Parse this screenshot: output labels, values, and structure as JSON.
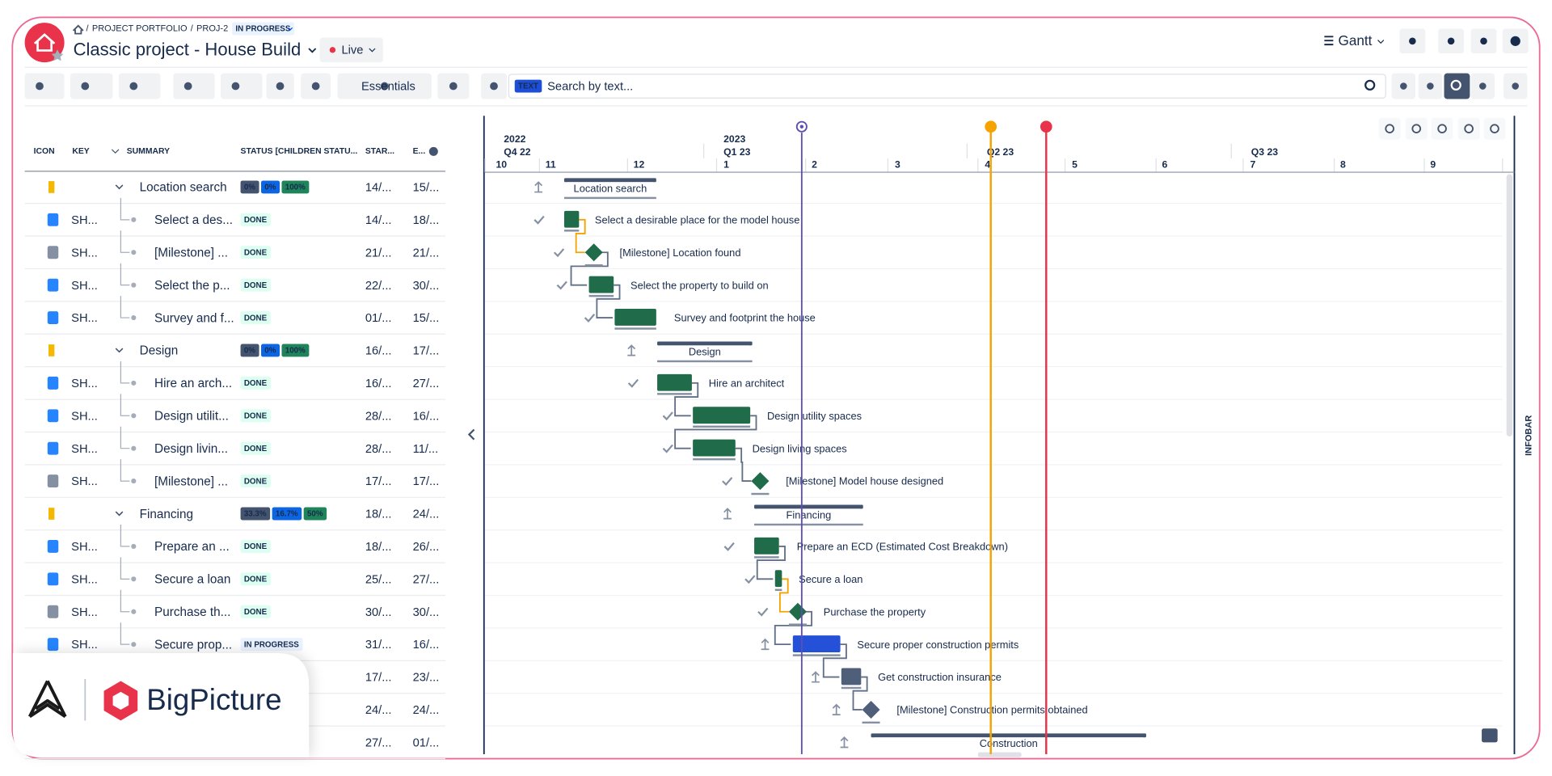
{
  "header": {
    "breadcrumb": [
      "PROJECT PORTFOLIO",
      "PROJ-2"
    ],
    "status": "IN PROGRESS",
    "title": "Classic project - House Build",
    "live": "Live",
    "view": "Gantt"
  },
  "toolbar": {
    "preset": "Essentials",
    "search_badge": "TEXT",
    "search_placeholder": "Search by text..."
  },
  "table": {
    "columns": [
      "ICON",
      "KEY",
      "SUMMARY",
      "STATUS [CHILDREN STATU...",
      "STAR...",
      "E..."
    ],
    "rows": [
      {
        "summary": "Location search",
        "progress": [
          "0%",
          "0%",
          "100%"
        ],
        "start": "14/...",
        "end": "15/..."
      },
      {
        "key": "SH...",
        "summary": "Select a des...",
        "status": "DONE",
        "start": "14/...",
        "end": "18/..."
      },
      {
        "key": "SH...",
        "summary": "[Milestone] ...",
        "status": "DONE",
        "start": "21/...",
        "end": "21/..."
      },
      {
        "key": "SH...",
        "summary": "Select the p...",
        "status": "DONE",
        "start": "22/...",
        "end": "30/..."
      },
      {
        "key": "SH...",
        "summary": "Survey and f...",
        "status": "DONE",
        "start": "01/...",
        "end": "15/..."
      },
      {
        "summary": "Design",
        "progress": [
          "0%",
          "0%",
          "100%"
        ],
        "start": "16/...",
        "end": "17/..."
      },
      {
        "key": "SH...",
        "summary": "Hire an arch...",
        "status": "DONE",
        "start": "16/...",
        "end": "27/..."
      },
      {
        "key": "SH...",
        "summary": "Design utilit...",
        "status": "DONE",
        "start": "28/...",
        "end": "16/..."
      },
      {
        "key": "SH...",
        "summary": "Design livin...",
        "status": "DONE",
        "start": "28/...",
        "end": "11/..."
      },
      {
        "key": "SH...",
        "summary": "[Milestone] ...",
        "status": "DONE",
        "start": "17/...",
        "end": "17/..."
      },
      {
        "summary": "Financing",
        "progress": [
          "33.3%",
          "16.7%",
          "50%"
        ],
        "start": "18/...",
        "end": "24/..."
      },
      {
        "key": "SH...",
        "summary": "Prepare an ...",
        "status": "DONE",
        "start": "18/...",
        "end": "26/..."
      },
      {
        "key": "SH...",
        "summary": "Secure a loan",
        "status": "DONE",
        "start": "25/...",
        "end": "27/..."
      },
      {
        "key": "SH...",
        "summary": "Purchase th...",
        "status": "DONE",
        "start": "30/...",
        "end": "30/..."
      },
      {
        "key": "SH...",
        "summary": "Secure prop...",
        "status": "IN PROGRESS",
        "start": "31/...",
        "end": "16/..."
      },
      {
        "start": "17/...",
        "end": "23/..."
      },
      {
        "start": "24/...",
        "end": "24/..."
      },
      {
        "start": "27/...",
        "end": "01/..."
      }
    ]
  },
  "timeline": {
    "years": [
      "2022",
      "2023"
    ],
    "quarters": [
      "Q4 22",
      "Q1 23",
      "Q2 23",
      "Q3 23"
    ],
    "months": [
      "10",
      "11",
      "12",
      "1",
      "2",
      "3",
      "4",
      "5",
      "6",
      "7",
      "8",
      "9"
    ]
  },
  "gantt": {
    "bars": [
      "Location search",
      "Select a desirable place for the model house",
      "[Milestone] Location found",
      "Select the property to build on",
      "Survey and footprint the house",
      "Design",
      "Hire an architect",
      "Design utility spaces",
      "Design living spaces",
      "[Milestone] Model house designed",
      "Financing",
      "Prepare an ECD (Estimated Cost Breakdown)",
      "Secure a loan",
      "Purchase the property",
      "Secure proper construction permits",
      "Get construction insurance",
      "[Milestone] Construction permits obtained",
      "Construction"
    ]
  },
  "infobar": "INFOBAR",
  "brand": "BigPicture"
}
